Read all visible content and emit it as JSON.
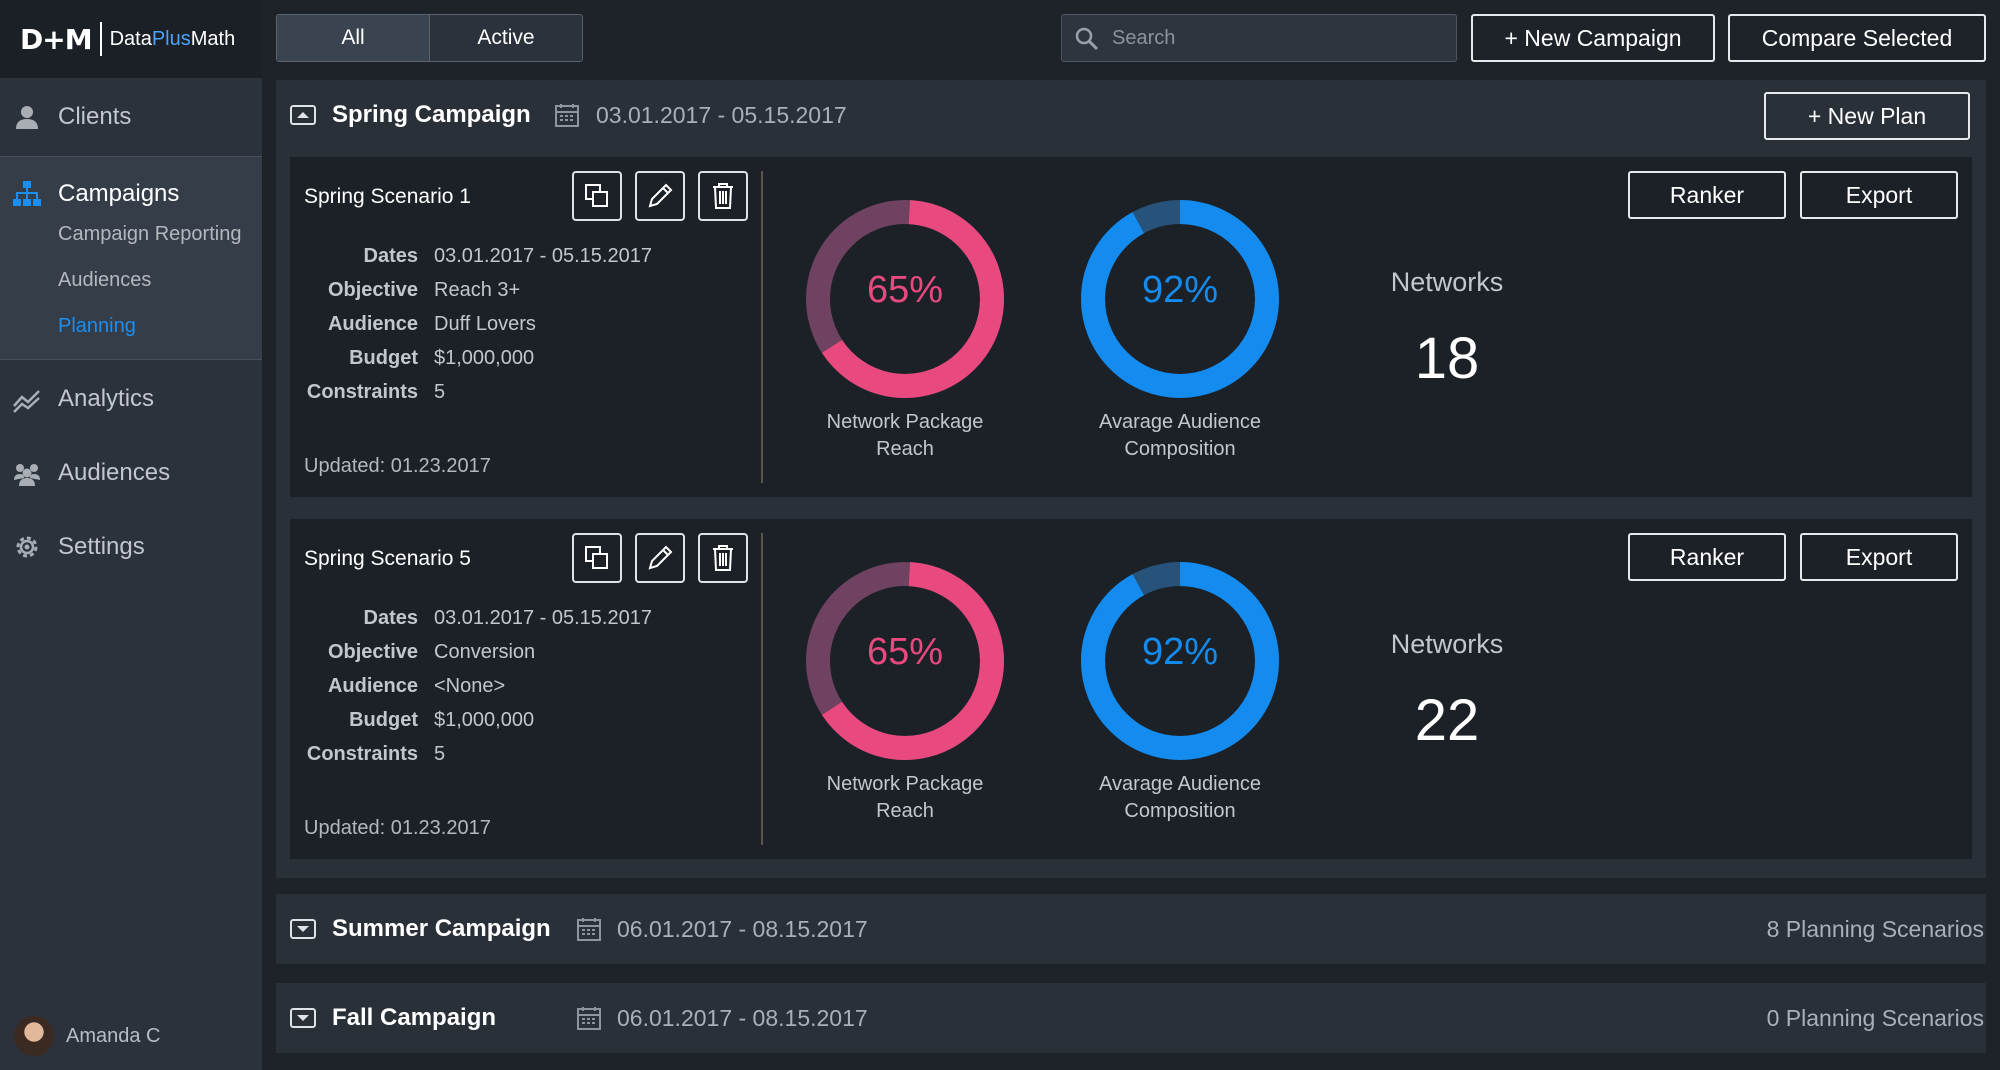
{
  "brand": {
    "logo_mark": "D+M",
    "name_a": "Data",
    "name_b": "Plus",
    "name_c": "Math",
    "accent": "#1b8ef2"
  },
  "sidebar": {
    "items": [
      {
        "label": "Clients",
        "icon": "person-icon"
      },
      {
        "label": "Campaigns",
        "icon": "org-chart-icon"
      },
      {
        "label": "Analytics",
        "icon": "line-chart-icon"
      },
      {
        "label": "Audiences",
        "icon": "group-icon"
      },
      {
        "label": "Settings",
        "icon": "gear-icon"
      }
    ],
    "sub_items": [
      {
        "label": "Campaign Reporting"
      },
      {
        "label": "Audiences"
      },
      {
        "label": "Planning"
      }
    ],
    "user": {
      "name": "Amanda C"
    }
  },
  "toolbar": {
    "filter_all": "All",
    "filter_active": "Active",
    "search_placeholder": "Search",
    "new_campaign": "+ New Campaign",
    "compare_selected": "Compare Selected"
  },
  "campaigns": [
    {
      "name": "Spring Campaign",
      "dates": "03.01.2017 - 05.15.2017",
      "new_plan": "+ New Plan",
      "scenarios": [
        {
          "title": "Spring Scenario 1",
          "fields": [
            {
              "key": "Dates",
              "value": "03.01.2017 - 05.15.2017"
            },
            {
              "key": "Objective",
              "value": "Reach 3+"
            },
            {
              "key": "Audience",
              "value": "Duff Lovers"
            },
            {
              "key": "Budget",
              "value": "$1,000,000"
            },
            {
              "key": "Constraints",
              "value": "5"
            }
          ],
          "updated": "Updated: 01.23.2017",
          "reach_pct": 65,
          "reach_text": "65%",
          "reach_label": "Network Package Reach",
          "composition_pct": 92,
          "composition_text": "92%",
          "composition_label": "Avarage Audience Composition",
          "networks_label": "Networks",
          "networks_value": "18",
          "ranker": "Ranker",
          "export": "Export"
        },
        {
          "title": "Spring Scenario 5",
          "fields": [
            {
              "key": "Dates",
              "value": "03.01.2017 - 05.15.2017"
            },
            {
              "key": "Objective",
              "value": "Conversion"
            },
            {
              "key": "Audience",
              "value": "<None>"
            },
            {
              "key": "Budget",
              "value": "$1,000,000"
            },
            {
              "key": "Constraints",
              "value": "5"
            }
          ],
          "updated": "Updated: 01.23.2017",
          "reach_pct": 65,
          "reach_text": "65%",
          "reach_label": "Network Package Reach",
          "composition_pct": 92,
          "composition_text": "92%",
          "composition_label": "Avarage Audience Composition",
          "networks_label": "Networks",
          "networks_value": "22",
          "ranker": "Ranker",
          "export": "Export"
        }
      ]
    },
    {
      "name": "Summer Campaign",
      "dates": "06.01.2017 - 08.15.2017",
      "count": "8 Planning Scenarios"
    },
    {
      "name": "Fall Campaign",
      "dates": "06.01.2017 - 08.15.2017",
      "count": "0 Planning Scenarios"
    }
  ],
  "colors": {
    "reach": "#e8497f",
    "reach_track": "#6e4260",
    "composition": "#138bef",
    "composition_track": "#27527a"
  }
}
